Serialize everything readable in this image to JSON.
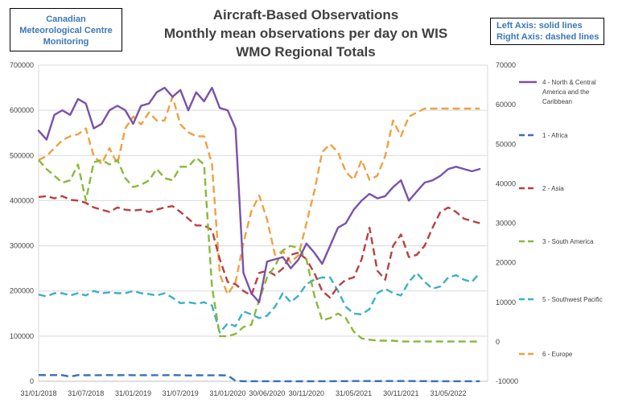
{
  "header": {
    "org_lines": [
      "Canadian",
      "Meteorological Centre",
      "Monitoring"
    ],
    "title_lines": [
      "Aircraft-Based Observations",
      "Monthly mean observations per day on WIS",
      "WMO Regional Totals"
    ],
    "axis_note_lines": [
      "Left Axis: solid lines",
      "Right Axis: dashed lines"
    ]
  },
  "chart_data": {
    "type": "line",
    "title": "Aircraft-Based Observations — Monthly mean observations per day on WIS — WMO Regional Totals",
    "x_tick_labels": [
      "31/01/2018",
      "31/07/2018",
      "31/01/2019",
      "31/07/2019",
      "31/01/2020",
      "30/06/2020",
      "30/11/2020",
      "31/05/2021",
      "30/11/2021",
      "31/05/2022"
    ],
    "x_tick_months": [
      0,
      6,
      12,
      18,
      24,
      29,
      34,
      40,
      46,
      52
    ],
    "x_range_months": [
      0,
      57
    ],
    "left_axis": {
      "range": [
        0,
        700000
      ],
      "ticks": [
        0,
        100000,
        200000,
        300000,
        400000,
        500000,
        600000,
        700000
      ]
    },
    "right_axis": {
      "range": [
        -10000,
        70000
      ],
      "ticks": [
        -10000,
        0,
        10000,
        20000,
        30000,
        40000,
        50000,
        60000,
        70000
      ]
    },
    "gridlines": "horizontal",
    "series": [
      {
        "name": "4 - North & Central America and the Caribbean",
        "legend_lines": [
          "4 - North & Central",
          "America and the",
          "Caribbean"
        ],
        "axis": "left",
        "style": "solid",
        "color": "#7a52a8",
        "values": [
          555000,
          535000,
          590000,
          600000,
          590000,
          625000,
          615000,
          560000,
          570000,
          600000,
          610000,
          600000,
          570000,
          610000,
          615000,
          640000,
          650000,
          630000,
          645000,
          600000,
          640000,
          620000,
          650000,
          605000,
          600000,
          560000,
          240000,
          195000,
          175000,
          265000,
          270000,
          275000,
          250000,
          270000,
          305000,
          285000,
          260000,
          300000,
          340000,
          350000,
          380000,
          400000,
          415000,
          405000,
          410000,
          430000,
          445000,
          400000,
          420000,
          440000,
          445000,
          455000,
          470000,
          475000,
          470000,
          465000,
          470000
        ]
      },
      {
        "name": "1 - Africa",
        "legend_lines": [
          "1 - Africa"
        ],
        "axis": "left",
        "style": "dashed",
        "color": "#3a6fb8",
        "values": [
          13900,
          13600,
          13800,
          13500,
          10300,
          13700,
          13400,
          13600,
          13600,
          13700,
          13500,
          13800,
          13500,
          13600,
          13400,
          13600,
          13500,
          13700,
          13600,
          12800,
          13300,
          13100,
          13200,
          13300,
          13000,
          1000,
          150,
          200,
          150,
          100,
          150,
          100,
          50,
          50,
          50,
          100,
          150,
          250,
          350,
          400,
          450,
          500,
          450,
          400,
          500,
          550,
          500,
          450,
          350,
          300,
          250,
          200,
          150,
          200,
          150,
          200,
          150
        ]
      },
      {
        "name": "2 - Asia",
        "legend_lines": [
          "2 - Asia"
        ],
        "axis": "left",
        "style": "dashed",
        "color": "#b84040",
        "values": [
          408000,
          410000,
          405000,
          410000,
          402000,
          400000,
          395000,
          385000,
          380000,
          375000,
          385000,
          380000,
          378000,
          380000,
          375000,
          380000,
          385000,
          388000,
          375000,
          360000,
          345000,
          345000,
          335000,
          270000,
          220000,
          215000,
          200000,
          190000,
          240000,
          245000,
          235000,
          250000,
          280000,
          285000,
          270000,
          240000,
          200000,
          185000,
          210000,
          225000,
          230000,
          270000,
          340000,
          245000,
          225000,
          300000,
          325000,
          275000,
          280000,
          300000,
          340000,
          375000,
          385000,
          375000,
          360000,
          355000,
          350000
        ]
      },
      {
        "name": "3 - South America",
        "legend_lines": [
          "3  - South America"
        ],
        "axis": "left",
        "style": "dashed",
        "color": "#8ab83a",
        "values": [
          490000,
          470000,
          455000,
          440000,
          445000,
          480000,
          400000,
          485000,
          490000,
          480000,
          490000,
          450000,
          430000,
          435000,
          445000,
          470000,
          450000,
          445000,
          475000,
          475000,
          495000,
          480000,
          210000,
          100000,
          100000,
          105000,
          120000,
          125000,
          180000,
          230000,
          255000,
          290000,
          300000,
          295000,
          270000,
          190000,
          135000,
          140000,
          150000,
          140000,
          110000,
          95000,
          92000,
          90000,
          90000,
          90000,
          88000,
          88000,
          88000,
          88000,
          88000,
          88000,
          88000,
          88000,
          88000,
          88000,
          88000
        ]
      },
      {
        "name": "5 - Southwest Pacific",
        "legend_lines": [
          "5 - Southwest Pacific"
        ],
        "axis": "left",
        "style": "dashed",
        "color": "#3ab0c8",
        "values": [
          192000,
          188000,
          195000,
          195000,
          190000,
          195000,
          190000,
          200000,
          195000,
          197000,
          195000,
          195000,
          200000,
          195000,
          193000,
          190000,
          195000,
          185000,
          173000,
          175000,
          172000,
          175000,
          168000,
          108000,
          128000,
          122000,
          155000,
          148000,
          140000,
          145000,
          165000,
          195000,
          175000,
          190000,
          215000,
          225000,
          230000,
          230000,
          200000,
          165000,
          150000,
          148000,
          160000,
          195000,
          205000,
          195000,
          190000,
          220000,
          240000,
          220000,
          205000,
          210000,
          230000,
          235000,
          225000,
          220000,
          240000
        ]
      },
      {
        "name": "6 - Europe",
        "legend_lines": [
          "6 - Europe"
        ],
        "axis": "right",
        "style": "dashed",
        "color": "#f0a040",
        "values": [
          46000,
          47000,
          49000,
          51000,
          52000,
          52500,
          54000,
          47000,
          45000,
          49000,
          45000,
          54000,
          57000,
          55000,
          58000,
          56000,
          56000,
          62000,
          55000,
          53000,
          52000,
          52000,
          45000,
          17000,
          12000,
          15000,
          25000,
          33000,
          37000,
          31000,
          22000,
          23000,
          20000,
          22000,
          30000,
          38000,
          48000,
          50000,
          48000,
          43000,
          41000,
          46000,
          41000,
          42000,
          47000,
          56000,
          52000,
          57000,
          58000,
          59000,
          59000,
          59000,
          59000,
          59000,
          59000,
          59000,
          59000
        ]
      }
    ]
  }
}
